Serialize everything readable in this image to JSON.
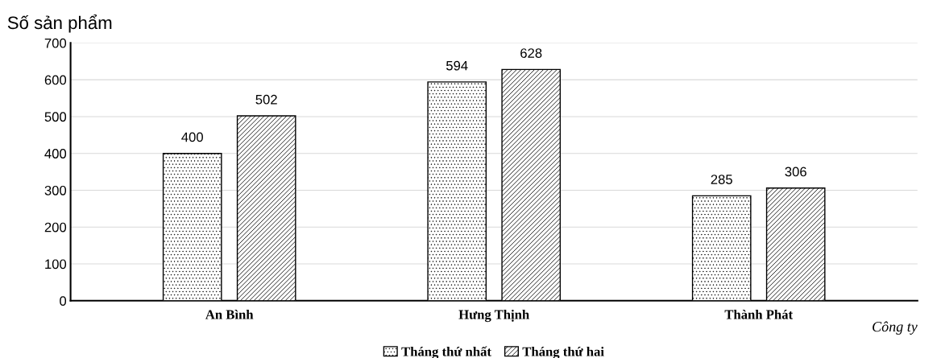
{
  "chart_data": {
    "type": "bar",
    "ylabel": "Số sản phẩm",
    "xlabel": "Công ty",
    "categories": [
      "An Bình",
      "Hưng Thịnh",
      "Thành Phát"
    ],
    "series": [
      {
        "name": "Tháng thứ nhất",
        "color": "#000000",
        "values": [
          400,
          594,
          285
        ]
      },
      {
        "name": "Tháng thứ hai",
        "color": "#000000",
        "values": [
          502,
          628,
          306
        ]
      }
    ],
    "ylim": [
      0,
      700
    ],
    "yticks": [
      0,
      100,
      200,
      300,
      400,
      500,
      600,
      700
    ],
    "grid": "y",
    "legend": "bottom",
    "data_labels": true
  }
}
